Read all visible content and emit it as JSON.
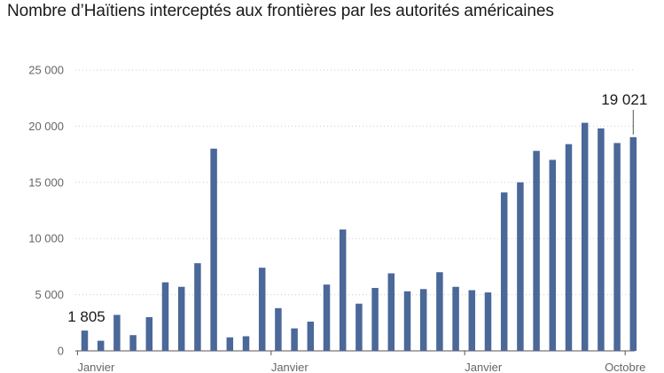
{
  "chart_data": {
    "type": "bar",
    "title": "Nombre d’Haïtiens interceptés aux frontières par les autorités américaines",
    "color": "#4a6899",
    "ylim": [
      0,
      25000
    ],
    "yticks": [
      0,
      5000,
      10000,
      15000,
      20000,
      25000
    ],
    "ytick_labels": [
      "0",
      "5 000",
      "10 000",
      "15 000",
      "20 000",
      "25 000"
    ],
    "grid": true,
    "x_labels": [
      {
        "index": 0,
        "text": "Janvier"
      },
      {
        "index": 12,
        "text": "Janvier"
      },
      {
        "index": 24,
        "text": "Janvier"
      },
      {
        "index": 33,
        "text": "Octobre"
      }
    ],
    "values": [
      1805,
      900,
      3200,
      1400,
      3000,
      6100,
      5700,
      7800,
      18000,
      1200,
      1300,
      7400,
      3800,
      2000,
      2600,
      5900,
      10800,
      4200,
      5600,
      6900,
      5300,
      5500,
      7000,
      5700,
      5400,
      5200,
      14100,
      15000,
      17800,
      17000,
      18400,
      20300,
      19800,
      18500,
      19021
    ],
    "annotations": [
      {
        "index": 0,
        "text": "1 805"
      },
      {
        "index": 34,
        "text": "19 021"
      }
    ]
  }
}
